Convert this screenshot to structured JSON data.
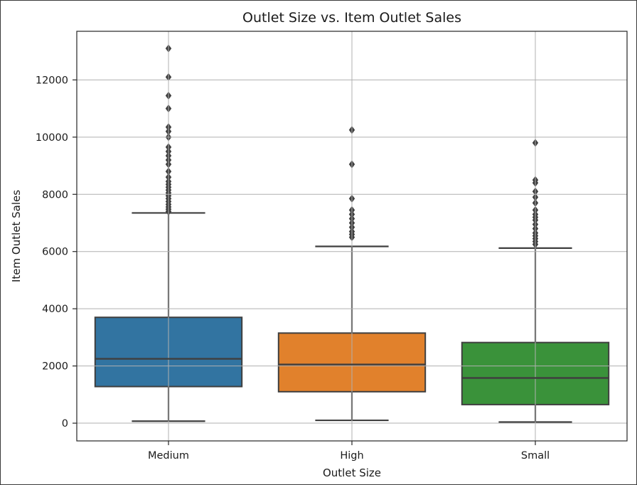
{
  "chart_data": {
    "type": "boxplot",
    "title": "Outlet Size vs. Item Outlet Sales",
    "xlabel": "Outlet Size",
    "ylabel": "Item Outlet Sales",
    "ylim": [
      -620,
      13700
    ],
    "yticks": [
      0,
      2000,
      4000,
      6000,
      8000,
      10000,
      12000
    ],
    "grid": true,
    "categories": [
      "Medium",
      "High",
      "Small"
    ],
    "colors": [
      "#3274a1",
      "#e1812c",
      "#3a923a"
    ],
    "boxes": [
      {
        "name": "Medium",
        "whisker_low": 70,
        "q1": 1280,
        "median": 2250,
        "q3": 3700,
        "whisker_high": 7350,
        "outliers": [
          7400,
          7480,
          7560,
          7650,
          7750,
          7850,
          7950,
          8050,
          8150,
          8250,
          8350,
          8450,
          8600,
          8800,
          9050,
          9200,
          9350,
          9500,
          9650,
          10000,
          10200,
          10350,
          11000,
          11450,
          12100,
          13100
        ]
      },
      {
        "name": "High",
        "whisker_low": 100,
        "q1": 1100,
        "median": 2050,
        "q3": 3150,
        "whisker_high": 6180,
        "outliers": [
          6500,
          6600,
          6700,
          6850,
          7000,
          7150,
          7300,
          7450,
          7850,
          9050,
          10250
        ]
      },
      {
        "name": "Small",
        "whisker_low": 40,
        "q1": 650,
        "median": 1580,
        "q3": 2820,
        "whisker_high": 6120,
        "outliers": [
          6250,
          6350,
          6450,
          6550,
          6650,
          6800,
          6950,
          7100,
          7200,
          7300,
          7450,
          7700,
          7900,
          8100,
          8400,
          8500,
          9800
        ]
      }
    ]
  }
}
